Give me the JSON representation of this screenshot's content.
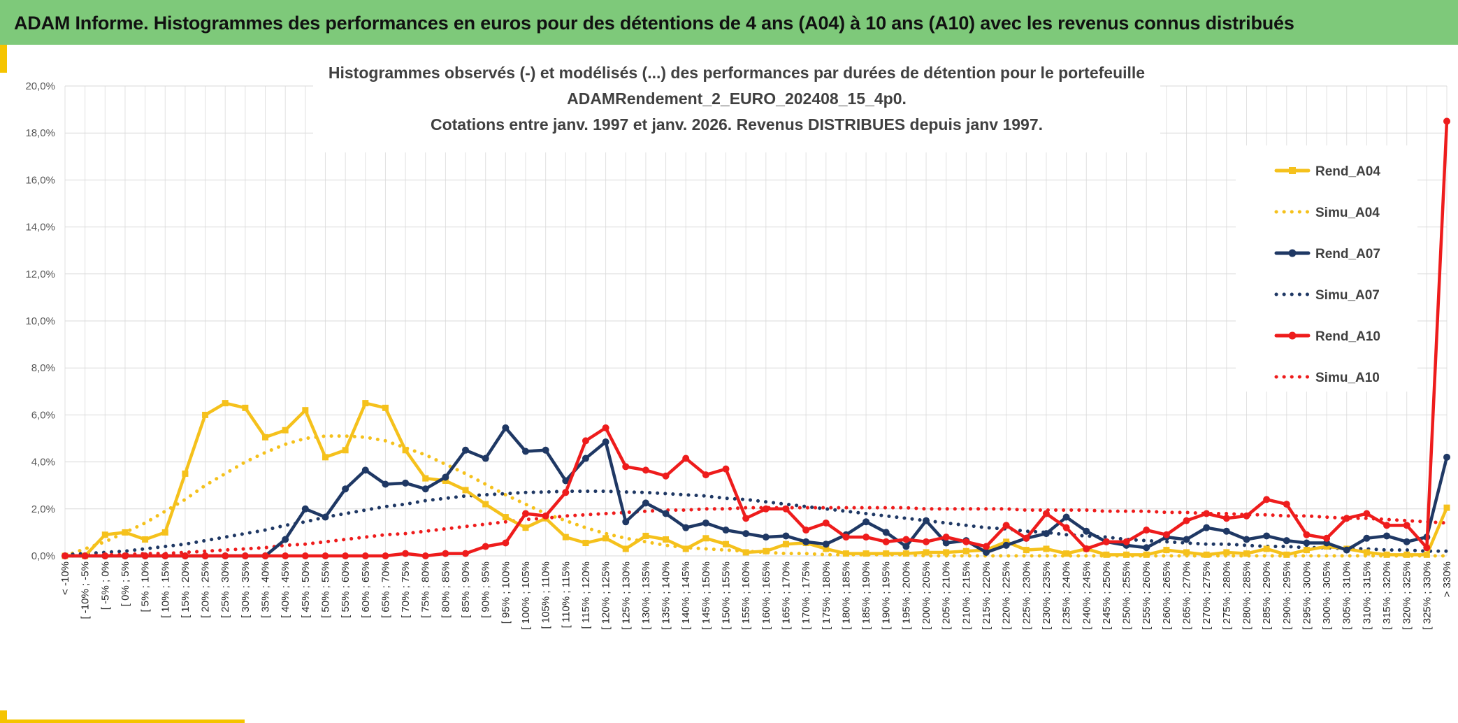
{
  "header": {
    "title": "ADAM Informe. Histogrammes des performances en euros pour des détentions de 4 ans (A04) à 10 ans (A10) avec les revenus connus distribués"
  },
  "colors": {
    "header_bg": "#7ec97a",
    "A04": "#f5c11c",
    "A07": "#1f3864",
    "A10": "#ee1c1c",
    "accent": "#f5c400"
  },
  "chart_data": {
    "type": "line",
    "title_lines": [
      "Histogrammes observés (-) et modélisés (...) des performances  par durées de détention pour le portefeuille",
      "ADAMRendement_2_EURO_202408_15_4p0.",
      "Cotations entre janv. 1997 et janv. 2026. Revenus DISTRIBUES depuis janv 1997."
    ],
    "ylim": [
      0,
      20
    ],
    "y_ticks": [
      "0,0%",
      "2,0%",
      "4,0%",
      "6,0%",
      "8,0%",
      "10,0%",
      "12,0%",
      "14,0%",
      "16,0%",
      "18,0%",
      "20,0%"
    ],
    "grid": true,
    "legend_position": "right",
    "categories": [
      "< -10%",
      "[ -10% ; -5%",
      "[ -5% ; 0%",
      "[ 0% ; 5%",
      "[ 5% ; 10%",
      "[ 10% ; 15%",
      "[ 15% ; 20%",
      "[ 20% ; 25%",
      "[ 25% ; 30%",
      "[ 30% ; 35%",
      "[ 35% ; 40%",
      "[ 40% ; 45%",
      "[ 45% ; 50%",
      "[ 50% ; 55%",
      "[ 55% ; 60%",
      "[ 60% ; 65%",
      "[ 65% ; 70%",
      "[ 70% ; 75%",
      "[ 75% ; 80%",
      "[ 80% ; 85%",
      "[ 85% ; 90%",
      "[ 90% ; 95%",
      "[ 95% ; 100%",
      "[ 100% ; 105%",
      "[ 105% ; 110%",
      "[ 110% ; 115%",
      "[ 115% ; 120%",
      "[ 120% ; 125%",
      "[ 125% ; 130%",
      "[ 130% ; 135%",
      "[ 135% ; 140%",
      "[ 140% ; 145%",
      "[ 145% ; 150%",
      "[ 150% ; 155%",
      "[ 155% ; 160%",
      "[ 160% ; 165%",
      "[ 165% ; 170%",
      "[ 170% ; 175%",
      "[ 175% ; 180%",
      "[ 180% ; 185%",
      "[ 185% ; 190%",
      "[ 190% ; 195%",
      "[ 195% ; 200%",
      "[ 200% ; 205%",
      "[ 205% ; 210%",
      "[ 210% ; 215%",
      "[ 215% ; 220%",
      "[ 220% ; 225%",
      "[ 225% ; 230%",
      "[ 230% ; 235%",
      "[ 235% ; 240%",
      "[ 240% ; 245%",
      "[ 245% ; 250%",
      "[ 250% ; 255%",
      "[ 255% ; 260%",
      "[ 260% ; 265%",
      "[ 265% ; 270%",
      "[ 270% ; 275%",
      "[ 275% ; 280%",
      "[ 280% ; 285%",
      "[ 285% ; 290%",
      "[ 290% ; 295%",
      "[ 295% ; 300%",
      "[ 300% ; 305%",
      "[ 305% ; 310%",
      "[ 310% ; 315%",
      "[ 315% ; 320%",
      "[ 320% ; 325%",
      "[ 325% ; 330%",
      "> 330%"
    ],
    "series": [
      {
        "name": "Rend_A04",
        "style": "solid",
        "marker": "square",
        "color": "#f5c11c",
        "values": [
          0.0,
          0.0,
          0.9,
          1.0,
          0.7,
          1.0,
          3.5,
          6.0,
          6.5,
          6.3,
          5.05,
          5.35,
          6.2,
          4.2,
          4.5,
          6.5,
          6.3,
          4.5,
          3.3,
          3.2,
          2.8,
          2.2,
          1.65,
          1.2,
          1.6,
          0.8,
          0.55,
          0.75,
          0.3,
          0.85,
          0.7,
          0.3,
          0.75,
          0.5,
          0.15,
          0.2,
          0.5,
          0.55,
          0.3,
          0.1,
          0.1,
          0.1,
          0.1,
          0.15,
          0.15,
          0.2,
          0.25,
          0.6,
          0.25,
          0.3,
          0.1,
          0.3,
          0.05,
          0.05,
          0.05,
          0.25,
          0.15,
          0.05,
          0.15,
          0.1,
          0.3,
          0.05,
          0.25,
          0.4,
          0.3,
          0.15,
          0.05,
          0.05,
          0.05,
          2.05
        ]
      },
      {
        "name": "Simu_A04",
        "style": "dotted",
        "color": "#f5c11c",
        "values": [
          0.0,
          0.3,
          0.6,
          1.0,
          1.4,
          1.9,
          2.4,
          3.0,
          3.5,
          4.0,
          4.4,
          4.75,
          5.0,
          5.1,
          5.1,
          5.05,
          4.9,
          4.6,
          4.3,
          3.9,
          3.5,
          3.05,
          2.6,
          2.2,
          1.8,
          1.5,
          1.2,
          0.95,
          0.75,
          0.6,
          0.45,
          0.35,
          0.3,
          0.25,
          0.2,
          0.15,
          0.1,
          0.1,
          0.05,
          0.05,
          0.05,
          0.05,
          0.05,
          0.0,
          0.0,
          0.0,
          0.0,
          0.0,
          0.0,
          0.0,
          0.0,
          0.0,
          0.0,
          0.0,
          0.0,
          0.0,
          0.0,
          0.0,
          0.0,
          0.0,
          0.0,
          0.0,
          0.0,
          0.0,
          0.0,
          0.0,
          0.0,
          0.0,
          0.0,
          0.0
        ]
      },
      {
        "name": "Rend_A07",
        "style": "solid",
        "marker": "circle",
        "color": "#1f3864",
        "values": [
          0.0,
          0.0,
          0.0,
          0.0,
          0.0,
          0.0,
          0.0,
          0.0,
          0.0,
          0.0,
          0.0,
          0.7,
          2.0,
          1.65,
          2.85,
          3.65,
          3.05,
          3.1,
          2.85,
          3.35,
          4.5,
          4.15,
          5.45,
          4.45,
          4.5,
          3.2,
          4.15,
          4.85,
          1.45,
          2.25,
          1.8,
          1.2,
          1.4,
          1.1,
          0.95,
          0.8,
          0.85,
          0.6,
          0.5,
          0.9,
          1.45,
          1.0,
          0.4,
          1.5,
          0.55,
          0.65,
          0.15,
          0.45,
          0.75,
          0.95,
          1.65,
          1.05,
          0.6,
          0.45,
          0.35,
          0.8,
          0.7,
          1.2,
          1.05,
          0.7,
          0.85,
          0.65,
          0.55,
          0.55,
          0.25,
          0.75,
          0.85,
          0.6,
          0.8,
          4.2
        ]
      },
      {
        "name": "Simu_A07",
        "style": "dotted",
        "color": "#1f3864",
        "values": [
          0.05,
          0.1,
          0.15,
          0.2,
          0.3,
          0.4,
          0.5,
          0.65,
          0.8,
          0.95,
          1.1,
          1.3,
          1.45,
          1.65,
          1.8,
          1.95,
          2.1,
          2.2,
          2.35,
          2.45,
          2.55,
          2.6,
          2.65,
          2.7,
          2.72,
          2.75,
          2.75,
          2.75,
          2.72,
          2.7,
          2.65,
          2.6,
          2.55,
          2.45,
          2.4,
          2.3,
          2.2,
          2.1,
          2.0,
          1.9,
          1.8,
          1.7,
          1.6,
          1.5,
          1.4,
          1.3,
          1.2,
          1.15,
          1.05,
          1.0,
          0.9,
          0.85,
          0.8,
          0.7,
          0.65,
          0.6,
          0.55,
          0.5,
          0.5,
          0.45,
          0.4,
          0.4,
          0.35,
          0.35,
          0.3,
          0.3,
          0.25,
          0.25,
          0.2,
          0.2
        ]
      },
      {
        "name": "Rend_A10",
        "style": "solid",
        "marker": "circle",
        "color": "#ee1c1c",
        "values": [
          0.0,
          0.0,
          0.0,
          0.0,
          0.0,
          0.0,
          0.0,
          0.0,
          0.0,
          0.0,
          0.0,
          0.0,
          0.0,
          0.0,
          0.0,
          0.0,
          0.0,
          0.1,
          0.0,
          0.1,
          0.1,
          0.4,
          0.55,
          1.8,
          1.7,
          2.7,
          4.9,
          5.45,
          3.8,
          3.65,
          3.4,
          4.15,
          3.45,
          3.7,
          1.6,
          2.0,
          2.0,
          1.1,
          1.4,
          0.8,
          0.8,
          0.6,
          0.7,
          0.6,
          0.8,
          0.6,
          0.4,
          1.3,
          0.75,
          1.8,
          1.2,
          0.3,
          0.6,
          0.6,
          1.1,
          0.9,
          1.5,
          1.8,
          1.6,
          1.7,
          2.4,
          2.2,
          0.9,
          0.75,
          1.6,
          1.8,
          1.3,
          1.3,
          0.35,
          18.5
        ]
      },
      {
        "name": "Simu_A10",
        "style": "dotted",
        "color": "#ee1c1c",
        "values": [
          0.0,
          0.0,
          0.05,
          0.05,
          0.1,
          0.1,
          0.15,
          0.2,
          0.25,
          0.3,
          0.35,
          0.45,
          0.5,
          0.6,
          0.7,
          0.8,
          0.9,
          0.95,
          1.05,
          1.15,
          1.25,
          1.35,
          1.45,
          1.55,
          1.6,
          1.7,
          1.75,
          1.8,
          1.85,
          1.9,
          1.95,
          1.95,
          2.0,
          2.0,
          2.05,
          2.05,
          2.05,
          2.05,
          2.05,
          2.05,
          2.05,
          2.05,
          2.05,
          2.0,
          2.0,
          2.0,
          2.0,
          2.0,
          1.95,
          1.95,
          1.95,
          1.95,
          1.9,
          1.9,
          1.9,
          1.85,
          1.85,
          1.8,
          1.8,
          1.75,
          1.75,
          1.7,
          1.7,
          1.65,
          1.6,
          1.6,
          1.55,
          1.5,
          1.45,
          1.4
        ]
      }
    ]
  }
}
